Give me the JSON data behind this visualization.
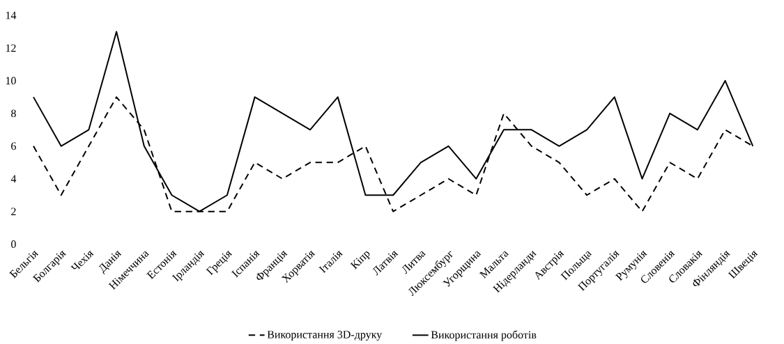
{
  "chart_data": {
    "type": "line",
    "categories": [
      "Бельгія",
      "Болгарія",
      "Чехія",
      "Данія",
      "Німеччина",
      "Естонія",
      "Ірландія",
      "Греція",
      "Іспанія",
      "Франція",
      "Хорватія",
      "Італія",
      "Кіпр",
      "Латвія",
      "Литва",
      "Люксембург",
      "Угорщина",
      "Мальта",
      "Нідерланди",
      "Австрія",
      "Польща",
      "Португалія",
      "Румунія",
      "Словенія",
      "Словакія",
      "Фінляндія",
      "Швеція"
    ],
    "series": [
      {
        "name": "Використання 3D-друку",
        "color": "#000000",
        "line_style": "dashed",
        "values": [
          6,
          3,
          6,
          9,
          7,
          2,
          2,
          2,
          5,
          4,
          5,
          5,
          6,
          2,
          3,
          4,
          3,
          8,
          6,
          5,
          3,
          4,
          2,
          5,
          4,
          7,
          6
        ]
      },
      {
        "name": "Використання роботів",
        "color": "#000000",
        "line_style": "solid",
        "values": [
          9,
          6,
          7,
          13,
          6,
          3,
          2,
          3,
          9,
          8,
          7,
          9,
          3,
          3,
          5,
          6,
          4,
          7,
          7,
          6,
          7,
          9,
          4,
          8,
          7,
          10,
          6
        ]
      }
    ],
    "ylim": [
      0,
      14
    ],
    "yticks": [
      0,
      2,
      4,
      6,
      8,
      10,
      12,
      14
    ],
    "grid": false,
    "legend": "bottom",
    "marker": "none"
  }
}
